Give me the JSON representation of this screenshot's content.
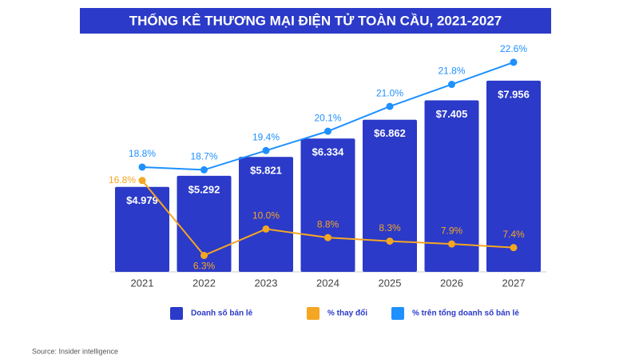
{
  "chart_data": {
    "type": "bar",
    "title": "THỐNG KÊ THƯƠNG MẠI ĐIỆN TỬ TOÀN CẦU, 2021-2027",
    "categories": [
      "2021",
      "2022",
      "2023",
      "2024",
      "2025",
      "2026",
      "2027"
    ],
    "series": [
      {
        "name": "Doanh số bán lẻ",
        "type": "bar",
        "color": "#2b3ac8",
        "values": [
          4.979,
          5.292,
          5.821,
          6.334,
          6.862,
          7.405,
          7.956
        ],
        "value_labels": [
          "$4.979",
          "$5.292",
          "$5.821",
          "$6.334",
          "$6.862",
          "$7.405",
          "$7.956"
        ],
        "ylim": [
          2.6,
          8.2
        ]
      },
      {
        "name": "% thay đổi",
        "type": "line",
        "color": "#f5a623",
        "values": [
          16.8,
          6.3,
          10.0,
          8.8,
          8.3,
          7.9,
          7.4
        ],
        "value_labels": [
          "16.8%",
          "6.3%",
          "10.0%",
          "8.8%",
          "8.3%",
          "7.9%",
          "7.4%"
        ],
        "ylim": [
          4,
          32
        ]
      },
      {
        "name": "% trên tổng doanh số bán lẻ",
        "type": "line",
        "color": "#1e90ff",
        "values": [
          18.8,
          18.7,
          19.4,
          20.1,
          21.0,
          21.8,
          22.6
        ],
        "value_labels": [
          "18.8%",
          "18.7%",
          "19.4%",
          "20.1%",
          "21.0%",
          "21.8%",
          "22.6%"
        ],
        "ylim": [
          15,
          22.25
        ]
      }
    ],
    "source": "Source: Insider intelligence"
  }
}
